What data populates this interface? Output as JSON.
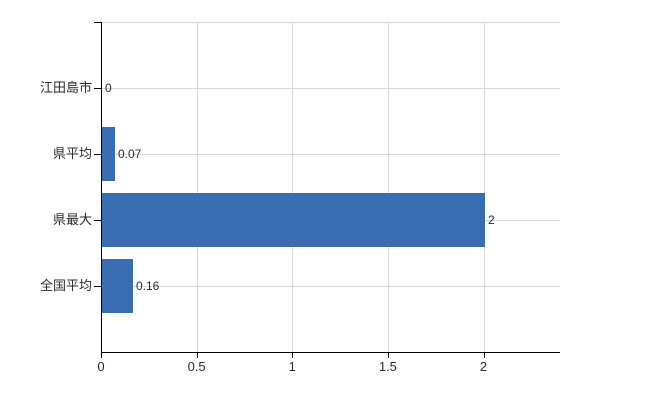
{
  "chart_data": {
    "type": "bar",
    "orientation": "horizontal",
    "title": "",
    "xlabel": "",
    "ylabel": "",
    "categories": [
      "江田島市",
      "県平均",
      "県最大",
      "全国平均"
    ],
    "values": [
      0,
      0.07,
      2,
      0.16
    ],
    "value_labels": [
      "0",
      "0.07",
      "2",
      "0.16"
    ],
    "x_ticks": [
      0,
      0.5,
      1,
      1.5,
      2
    ],
    "x_tick_labels": [
      "0",
      "0.5",
      "1",
      "1.5",
      "2"
    ],
    "xlim": [
      0,
      2.4
    ],
    "grid": true,
    "legend": "none",
    "colors": {
      "bar": "#3b6db2",
      "grid": "#d6d9ce",
      "axis": "#000000",
      "text": "#2b2b2b",
      "background": "#ffffff"
    }
  }
}
